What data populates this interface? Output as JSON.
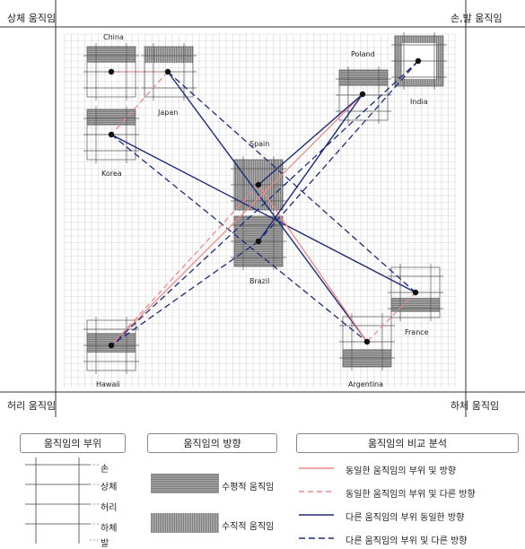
{
  "corners": {
    "top_left": "상체 움직임",
    "top_right": "손,발 움직임",
    "bottom_left": "허리 움직임",
    "bottom_right": "하체 움직임"
  },
  "countries": [
    {
      "id": "china",
      "label": "China",
      "shading": "top-horizontal"
    },
    {
      "id": "japan",
      "label": "Japan",
      "shading": "top-vertical"
    },
    {
      "id": "poland",
      "label": "Poland",
      "shading": "upper-horizontal"
    },
    {
      "id": "india",
      "label": "India",
      "shading": "frame-vertical"
    },
    {
      "id": "korea",
      "label": "Korea",
      "shading": "upper-horizontal"
    },
    {
      "id": "spain",
      "label": "Spain",
      "shading": "vertical"
    },
    {
      "id": "brazil",
      "label": "Brazil",
      "shading": "horizontal"
    },
    {
      "id": "france",
      "label": "France",
      "shading": "lower-horizontal"
    },
    {
      "id": "hawaii",
      "label": "Hawaii",
      "shading": "waist-horizontal"
    },
    {
      "id": "argentina",
      "label": "Argentina",
      "shading": "bottom-horizontal"
    }
  ],
  "connections": [
    {
      "from": "china",
      "to": "japan",
      "style": "pink-dashed"
    },
    {
      "from": "japan",
      "to": "korea",
      "style": "pink-dashed"
    },
    {
      "from": "japan",
      "to": "argentina",
      "style": "navy-solid"
    },
    {
      "from": "japan",
      "to": "france",
      "style": "navy-dashed"
    },
    {
      "from": "korea",
      "to": "france",
      "style": "navy-solid"
    },
    {
      "from": "korea",
      "to": "argentina",
      "style": "navy-dashed"
    },
    {
      "from": "poland",
      "to": "hawaii",
      "style": "pink-solid"
    },
    {
      "from": "poland",
      "to": "spain",
      "style": "navy-solid"
    },
    {
      "from": "india",
      "to": "hawaii",
      "style": "navy-dashed"
    },
    {
      "from": "india",
      "to": "brazil",
      "style": "navy-dashed"
    },
    {
      "from": "spain",
      "to": "hawaii",
      "style": "pink-dashed"
    },
    {
      "from": "spain",
      "to": "argentina",
      "style": "pink-solid"
    },
    {
      "from": "brazil",
      "to": "poland",
      "style": "navy-solid"
    },
    {
      "from": "brazil",
      "to": "hawaii",
      "style": "navy-dashed"
    },
    {
      "from": "france",
      "to": "argentina",
      "style": "pink-dashed"
    }
  ],
  "legend": {
    "part_title": "움직임의 부위",
    "direction_title": "움직임의 방향",
    "analysis_title": "움직임의 비교 분석",
    "body_parts": [
      "손",
      "상체",
      "허리",
      "하체",
      "발"
    ],
    "horizontal_label": "수평적 움직임",
    "vertical_label": "수직적 움직임",
    "line_items": [
      {
        "style": "pink-solid",
        "label": "동일한 움직임의 부위 및 방향"
      },
      {
        "style": "pink-dashed",
        "label": "동일한 움직임의 부위 및 다른 방향"
      },
      {
        "style": "navy-solid",
        "label": "다른 움직임의 부위 동일한 방향"
      },
      {
        "style": "navy-dashed",
        "label": "다른 움직임의 부위 및 다른 방향"
      }
    ]
  },
  "colors": {
    "pink": "#f08888",
    "navy": "#1e2a7a",
    "grid": "#d6d6d6",
    "shade": "#8f8f8f"
  }
}
